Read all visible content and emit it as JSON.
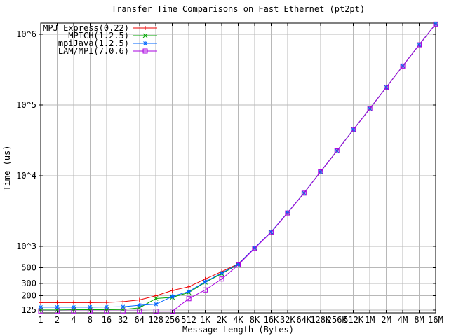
{
  "page": {
    "background": "#ffffff"
  },
  "chart_data": {
    "type": "line",
    "title": "Transfer Time Comparisons on Fast Ethernet (pt2pt)",
    "xlabel": "Message Length (Bytes)",
    "ylabel": "Time (us)",
    "x_scale": "log2-categorical",
    "y_scale": "log10",
    "grid": true,
    "grid_color": "#b8b8b8",
    "axis_color": "#000000",
    "legend_position": "top-left-inside",
    "categories": [
      "1",
      "2",
      "4",
      "8",
      "16",
      "32",
      "64",
      "128",
      "256",
      "512",
      "1K",
      "2K",
      "4K",
      "8K",
      "16K",
      "32K",
      "64K",
      "128K",
      "256K",
      "512K",
      "1M",
      "2M",
      "4M",
      "8M",
      "16M"
    ],
    "yticks": {
      "values": [
        125,
        200,
        300,
        500,
        1000,
        10000,
        100000,
        1000000
      ],
      "labels": [
        "125",
        "200",
        "300",
        "500",
        "10^3",
        "10^4",
        "10^5",
        "10^6"
      ]
    },
    "ylim": [
      114.7,
      1440000
    ],
    "series": [
      {
        "name": "MPJ Express(0.22)",
        "color": "#ee0000",
        "marker": "plus",
        "values": [
          160,
          160,
          160,
          160,
          161,
          165,
          175,
          200,
          238,
          268,
          345,
          440,
          565,
          950,
          1600,
          3000,
          5700,
          11400,
          22500,
          45000,
          89000,
          178000,
          356000,
          710000,
          1400000
        ]
      },
      {
        "name": "MPICH(1.2.5)",
        "color": "#00a800",
        "marker": "cross",
        "values": [
          126,
          126,
          127,
          127,
          127,
          128,
          135,
          183,
          190,
          222,
          310,
          410,
          555,
          945,
          1590,
          2990,
          5690,
          11380,
          22480,
          44950,
          88900,
          177800,
          355800,
          709500,
          1398000
        ]
      },
      {
        "name": "mpiJava(1.2.5)",
        "color": "#0066ff",
        "marker": "asterisk",
        "values": [
          138,
          138,
          138,
          138,
          139,
          140,
          147,
          152,
          196,
          230,
          315,
          420,
          560,
          955,
          1605,
          3010,
          5710,
          11420,
          22530,
          45050,
          89100,
          178200,
          356400,
          711000,
          1402000
        ]
      },
      {
        "name": "LAM/MPI(7.0.6)",
        "color": "#aa00e0",
        "marker": "square",
        "values": [
          122,
          122,
          122,
          122,
          122,
          122,
          122,
          121,
          121,
          182,
          242,
          345,
          545,
          940,
          1585,
          2980,
          5680,
          11350,
          22450,
          44900,
          88800,
          177500,
          355500,
          709000,
          1396000
        ]
      }
    ]
  }
}
